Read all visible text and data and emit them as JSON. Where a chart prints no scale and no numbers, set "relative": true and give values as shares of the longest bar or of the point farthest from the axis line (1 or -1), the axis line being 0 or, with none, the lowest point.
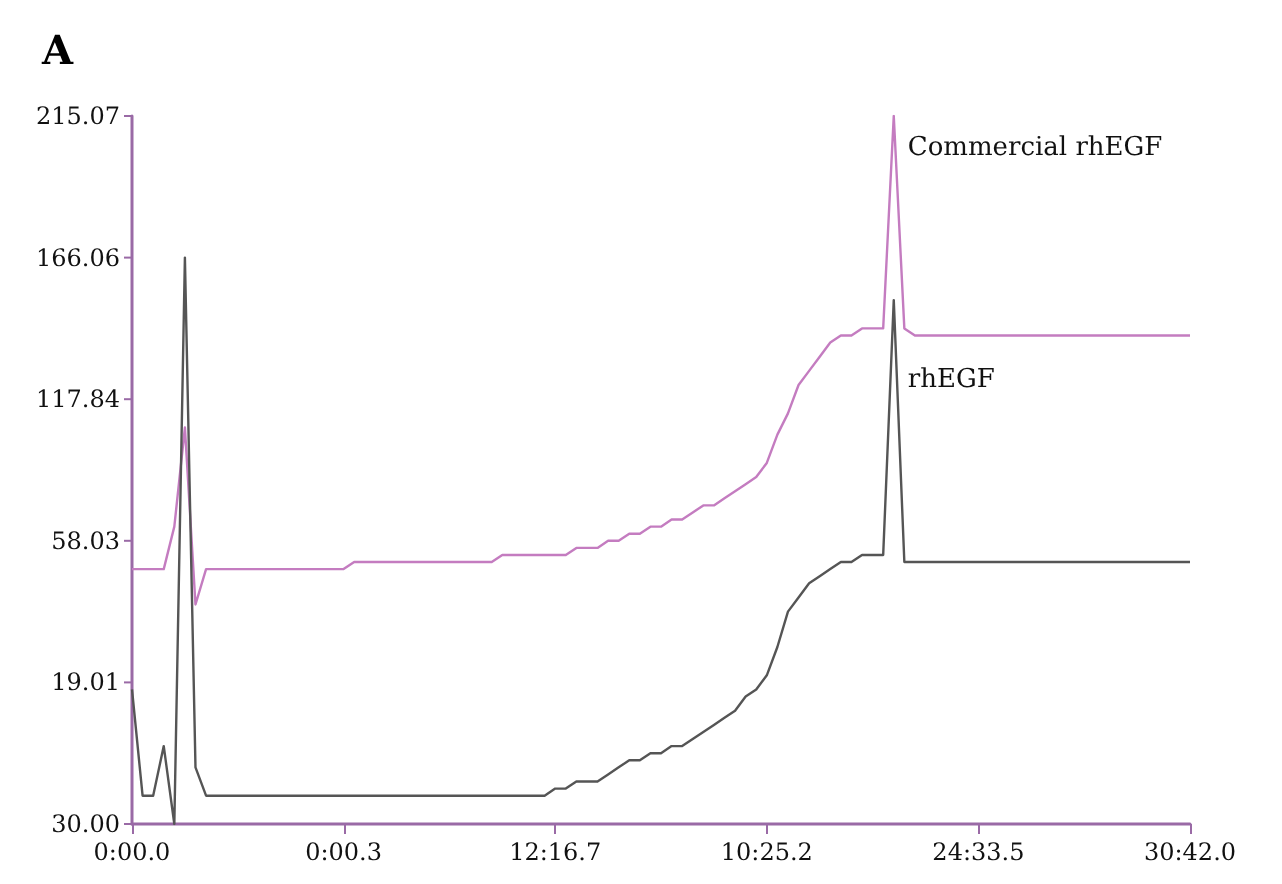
{
  "chart_data": {
    "type": "line",
    "title": "A",
    "relative": true,
    "annotations": [
      "215.07",
      "166.06",
      "117.84",
      "58.03",
      "19.01",
      "30.00"
    ],
    "categories": [
      "0:00.0",
      null,
      null,
      null,
      null,
      null,
      null,
      null,
      null,
      null,
      null,
      null,
      null,
      null,
      null,
      null,
      null,
      null,
      null,
      null,
      "0:00.3",
      null,
      null,
      null,
      null,
      null,
      null,
      null,
      null,
      null,
      null,
      null,
      null,
      null,
      null,
      null,
      null,
      null,
      null,
      null,
      "12:16.7",
      null,
      null,
      null,
      null,
      null,
      null,
      null,
      null,
      null,
      null,
      null,
      null,
      null,
      null,
      null,
      null,
      null,
      null,
      null,
      "10:25.2",
      null,
      null,
      null,
      null,
      null,
      null,
      null,
      null,
      null,
      null,
      null,
      null,
      null,
      null,
      null,
      null,
      null,
      null,
      null,
      "24:33.5",
      null,
      null,
      null,
      null,
      null,
      null,
      null,
      null,
      null,
      null,
      null,
      null,
      null,
      null,
      null,
      null,
      null,
      null,
      null,
      "30:42.0"
    ],
    "grid": false,
    "legend": false,
    "marker": "none",
    "line_style": "solid",
    "series": [
      {
        "name": "Commercial rhEGF",
        "color": "#c47cc0",
        "values": [
          0.36,
          0.36,
          0.36,
          0.36,
          0.42,
          0.56,
          0.31,
          0.36,
          0.36,
          0.36,
          0.36,
          0.36,
          0.36,
          0.36,
          0.36,
          0.36,
          0.36,
          0.36,
          0.36,
          0.36,
          0.36,
          0.37,
          0.37,
          0.37,
          0.37,
          0.37,
          0.37,
          0.37,
          0.37,
          0.37,
          0.37,
          0.37,
          0.37,
          0.37,
          0.37,
          0.38,
          0.38,
          0.38,
          0.38,
          0.38,
          0.38,
          0.38,
          0.39,
          0.39,
          0.39,
          0.4,
          0.4,
          0.41,
          0.41,
          0.42,
          0.42,
          0.43,
          0.43,
          0.44,
          0.45,
          0.45,
          0.46,
          0.47,
          0.48,
          0.49,
          0.51,
          0.55,
          0.58,
          0.62,
          0.64,
          0.66,
          0.68,
          0.69,
          0.69,
          0.7,
          0.7,
          0.7,
          1.0,
          0.7,
          0.69,
          0.69,
          0.69,
          0.69,
          0.69,
          0.69,
          0.69,
          0.69,
          0.69,
          0.69,
          0.69,
          0.69,
          0.69,
          0.69,
          0.69,
          0.69,
          0.69,
          0.69,
          0.69,
          0.69,
          0.69,
          0.69,
          0.69,
          0.69,
          0.69,
          0.69,
          0.69
        ]
      },
      {
        "name": "rhEGF",
        "color": "#555555",
        "values": [
          0.19,
          0.04,
          0.04,
          0.11,
          0.0,
          0.8,
          0.08,
          0.04,
          0.04,
          0.04,
          0.04,
          0.04,
          0.04,
          0.04,
          0.04,
          0.04,
          0.04,
          0.04,
          0.04,
          0.04,
          0.04,
          0.04,
          0.04,
          0.04,
          0.04,
          0.04,
          0.04,
          0.04,
          0.04,
          0.04,
          0.04,
          0.04,
          0.04,
          0.04,
          0.04,
          0.04,
          0.04,
          0.04,
          0.04,
          0.04,
          0.05,
          0.05,
          0.06,
          0.06,
          0.06,
          0.07,
          0.08,
          0.09,
          0.09,
          0.1,
          0.1,
          0.11,
          0.11,
          0.12,
          0.13,
          0.14,
          0.15,
          0.16,
          0.18,
          0.19,
          0.21,
          0.25,
          0.3,
          0.32,
          0.34,
          0.35,
          0.36,
          0.37,
          0.37,
          0.38,
          0.38,
          0.38,
          0.74,
          0.37,
          0.37,
          0.37,
          0.37,
          0.37,
          0.37,
          0.37,
          0.37,
          0.37,
          0.37,
          0.37,
          0.37,
          0.37,
          0.37,
          0.37,
          0.37,
          0.37,
          0.37,
          0.37,
          0.37,
          0.37,
          0.37,
          0.37,
          0.37,
          0.37,
          0.37,
          0.37,
          0.37
        ]
      }
    ]
  }
}
